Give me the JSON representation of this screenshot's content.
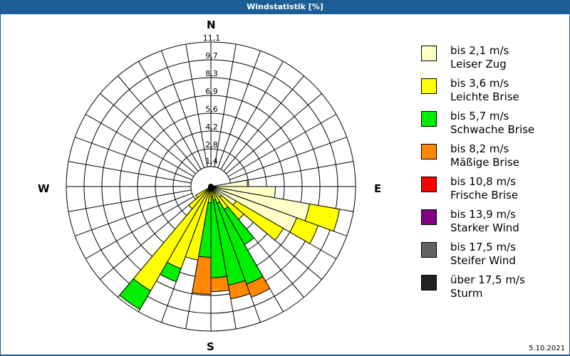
{
  "header": {
    "title": "Windstatistik [%]"
  },
  "footer": {
    "date": "5.10.2021"
  },
  "chart_data": {
    "type": "wind-rose (polar stacked bar)",
    "title": "Windstatistik [%]",
    "unit": "%",
    "radial_ticks": [
      1.4,
      2.8,
      4.2,
      5.6,
      6.9,
      8.3,
      9.7,
      11.1
    ],
    "radial_max": 11.1,
    "sector_width_deg": 10,
    "cardinals": {
      "N": "N",
      "E": "E",
      "S": "S",
      "W": "W"
    },
    "legend": [
      {
        "range": "bis 2,1 m/s",
        "name": "Leiser Zug",
        "color": "#ffffc8"
      },
      {
        "range": "bis 3,6 m/s",
        "name": "Leichte Brise",
        "color": "#ffff00"
      },
      {
        "range": "bis 5,7 m/s",
        "name": "Schwache Brise",
        "color": "#00ee00"
      },
      {
        "range": "bis 8,2 m/s",
        "name": "Mäßige Brise",
        "color": "#ff8800"
      },
      {
        "range": "bis 10,8 m/s",
        "name": "Frische Brise",
        "color": "#ff0000"
      },
      {
        "range": "bis 13,9 m/s",
        "name": "Starker Wind",
        "color": "#800080"
      },
      {
        "range": "bis 17,5 m/s",
        "name": "Steifer Wind",
        "color": "#606060"
      },
      {
        "range": "über 17,5 m/s",
        "name": "Sturm",
        "color": "#202020"
      }
    ],
    "sectors": [
      {
        "dir": 85,
        "bands": [
          2.6,
          0,
          0,
          0
        ]
      },
      {
        "dir": 95,
        "bands": [
          4.8,
          0,
          0,
          0
        ]
      },
      {
        "dir": 105,
        "bands": [
          7.6,
          2.4,
          0,
          0
        ]
      },
      {
        "dir": 115,
        "bands": [
          6.9,
          1.8,
          0,
          0
        ]
      },
      {
        "dir": 125,
        "bands": [
          2.0,
          4.3,
          0,
          0
        ]
      },
      {
        "dir": 135,
        "bands": [
          0.8,
          2.3,
          0,
          0
        ]
      },
      {
        "dir": 145,
        "bands": [
          0.3,
          1.5,
          3.2,
          0
        ]
      },
      {
        "dir": 155,
        "bands": [
          0,
          1.1,
          6.8,
          1.1
        ]
      },
      {
        "dir": 165,
        "bands": [
          0,
          0.8,
          6.8,
          1.1
        ]
      },
      {
        "dir": 175,
        "bands": [
          0,
          0.5,
          6.4,
          1.1
        ]
      },
      {
        "dir": 185,
        "bands": [
          0,
          1.0,
          4.3,
          2.9
        ]
      },
      {
        "dir": 195,
        "bands": [
          0,
          5.6,
          0,
          0
        ]
      },
      {
        "dir": 205,
        "bands": [
          0,
          6.6,
          1.1,
          0
        ]
      },
      {
        "dir": 215,
        "bands": [
          0,
          9.2,
          1.7,
          0
        ]
      },
      {
        "dir": 225,
        "bands": [
          0,
          2.0,
          0,
          0
        ]
      },
      {
        "dir": 235,
        "bands": [
          0,
          1.1,
          0,
          0
        ]
      }
    ]
  }
}
